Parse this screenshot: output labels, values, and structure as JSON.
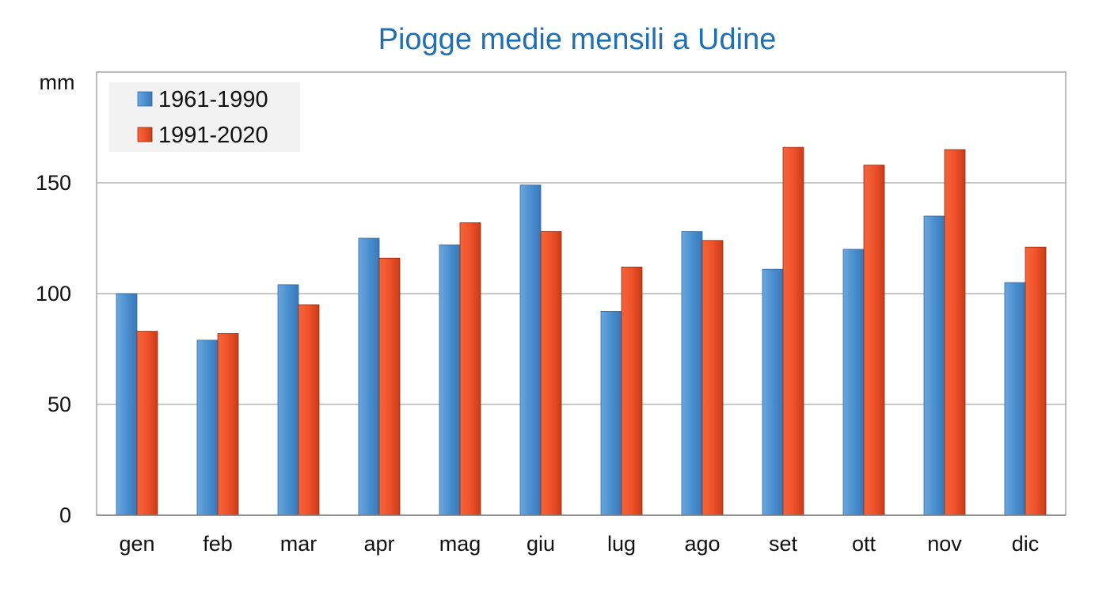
{
  "chart_data": {
    "type": "bar",
    "title": "Piogge medie mensili a Udine",
    "ylabel": "mm",
    "xlabel": "",
    "categories": [
      "gen",
      "feb",
      "mar",
      "apr",
      "mag",
      "giu",
      "lug",
      "ago",
      "set",
      "ott",
      "nov",
      "dic"
    ],
    "series": [
      {
        "name": "1961-1990",
        "color": "#4a8fd0",
        "values": [
          100,
          79,
          104,
          125,
          122,
          149,
          92,
          128,
          111,
          120,
          135,
          105
        ]
      },
      {
        "name": "1991-2020",
        "color": "#f0522a",
        "values": [
          83,
          82,
          95,
          116,
          132,
          128,
          112,
          124,
          166,
          158,
          165,
          121
        ]
      }
    ],
    "ylim": [
      0,
      200
    ],
    "yticks": [
      "0",
      "50",
      "100",
      "150"
    ],
    "grid": true,
    "legend_position": "top-left"
  }
}
